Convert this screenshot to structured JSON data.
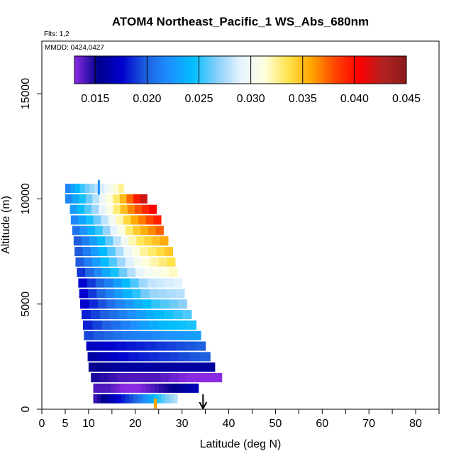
{
  "chart_data": {
    "type": "heatmap",
    "title": "ATOM4 Northeast_Pacific_1 WS_Abs_680nm",
    "flights_label": "Flts: 1,2",
    "dates_label": "MMDD: 0424,0427",
    "xlabel": "Latitude (deg N)",
    "ylabel": "Altitude (m)",
    "xlim": [
      0,
      85
    ],
    "ylim": [
      0,
      17500
    ],
    "x_ticks": [
      0,
      5,
      10,
      20,
      30,
      40,
      50,
      60,
      70,
      80
    ],
    "x_minor_ticks": [
      15,
      25,
      35,
      45,
      55,
      65,
      75,
      85
    ],
    "y_ticks": [
      0,
      5000,
      10000,
      15000
    ],
    "colorbar": {
      "min": 0.013,
      "max": 0.045,
      "ticks": [
        0.015,
        0.02,
        0.025,
        0.03,
        0.035,
        0.04,
        0.045
      ],
      "tick_labels": [
        "0.015",
        "0.020",
        "0.025",
        "0.030",
        "0.035",
        "0.040",
        "0.045"
      ],
      "colors": [
        "#8a2be2",
        "#00008b",
        "#0000cd",
        "#1e60e0",
        "#1e90ff",
        "#00bfff",
        "#87cefa",
        "#e6f4ff",
        "#ffffe0",
        "#ffe44d",
        "#ffa500",
        "#ff4500",
        "#ff0000",
        "#b22222",
        "#8b1a1a"
      ]
    },
    "profile": {
      "alt_step": 500,
      "rows": [
        {
          "alt": 500,
          "lat_start": 11.0,
          "lat_end": 29.0,
          "values": [
            0.014,
            0.016,
            0.018,
            0.02,
            0.023,
            0.026,
            0.028
          ]
        },
        {
          "alt": 1000,
          "lat_start": 11.0,
          "lat_end": 33.5,
          "values": [
            0.014,
            0.014,
            0.013,
            0.013,
            0.014,
            0.015,
            0.016,
            0.017
          ]
        },
        {
          "alt": 1500,
          "lat_start": 10.5,
          "lat_end": 38.5,
          "values": [
            0.015,
            0.014,
            0.014,
            0.013,
            0.013
          ]
        },
        {
          "alt": 2000,
          "lat_start": 10.0,
          "lat_end": 37.0,
          "values": [
            0.015,
            0.016,
            0.016,
            0.016,
            0.016
          ]
        },
        {
          "alt": 2500,
          "lat_start": 9.8,
          "lat_end": 36.0,
          "values": [
            0.016,
            0.018,
            0.019,
            0.02
          ]
        },
        {
          "alt": 3000,
          "lat_start": 9.5,
          "lat_end": 35.0,
          "values": [
            0.017,
            0.018,
            0.019,
            0.02
          ]
        },
        {
          "alt": 3500,
          "lat_start": 9.0,
          "lat_end": 34.0,
          "values": [
            0.019,
            0.021,
            0.022,
            0.023
          ]
        },
        {
          "alt": 4000,
          "lat_start": 8.8,
          "lat_end": 33.0,
          "values": [
            0.018,
            0.021,
            0.024,
            0.025
          ]
        },
        {
          "alt": 4500,
          "lat_start": 8.5,
          "lat_end": 32.0,
          "values": [
            0.018,
            0.021,
            0.024,
            0.026
          ]
        },
        {
          "alt": 5000,
          "lat_start": 8.2,
          "lat_end": 31.0,
          "values": [
            0.017,
            0.021,
            0.025,
            0.027
          ]
        },
        {
          "alt": 5500,
          "lat_start": 8.0,
          "lat_end": 30.5,
          "values": [
            0.017,
            0.022,
            0.027,
            0.028
          ]
        },
        {
          "alt": 6000,
          "lat_start": 7.8,
          "lat_end": 30.0,
          "values": [
            0.017,
            0.022,
            0.028,
            0.029
          ]
        },
        {
          "alt": 6500,
          "lat_start": 7.5,
          "lat_end": 29.0,
          "values": [
            0.018,
            0.024,
            0.03,
            0.032
          ]
        },
        {
          "alt": 7000,
          "lat_start": 7.2,
          "lat_end": 28.5,
          "values": [
            0.019,
            0.025,
            0.031,
            0.034
          ]
        },
        {
          "alt": 7500,
          "lat_start": 7.0,
          "lat_end": 28.0,
          "values": [
            0.019,
            0.025,
            0.032,
            0.035
          ]
        },
        {
          "alt": 8000,
          "lat_start": 6.8,
          "lat_end": 27.0,
          "values": [
            0.019,
            0.025,
            0.033,
            0.036
          ]
        },
        {
          "alt": 8500,
          "lat_start": 6.5,
          "lat_end": 26.0,
          "values": [
            0.02,
            0.026,
            0.034,
            0.038
          ]
        },
        {
          "alt": 9000,
          "lat_start": 6.2,
          "lat_end": 25.5,
          "values": [
            0.021,
            0.027,
            0.035,
            0.04
          ]
        },
        {
          "alt": 9500,
          "lat_start": 6.0,
          "lat_end": 24.5,
          "values": [
            0.022,
            0.028,
            0.036,
            0.041
          ]
        },
        {
          "alt": 10000,
          "lat_start": 5.0,
          "lat_end": 22.5,
          "values": [
            0.021,
            0.027,
            0.034,
            0.043
          ]
        },
        {
          "alt": 10500,
          "lat_start": 5.0,
          "lat_end": 17.5,
          "values": [
            0.021,
            0.026,
            0.029,
            0.033
          ]
        }
      ]
    },
    "markers": {
      "arrow_lat": 34.5,
      "surface_spot_lat": 24.3,
      "spike_lat": 12.2,
      "spike_alt_range": [
        10200,
        10900
      ]
    }
  }
}
